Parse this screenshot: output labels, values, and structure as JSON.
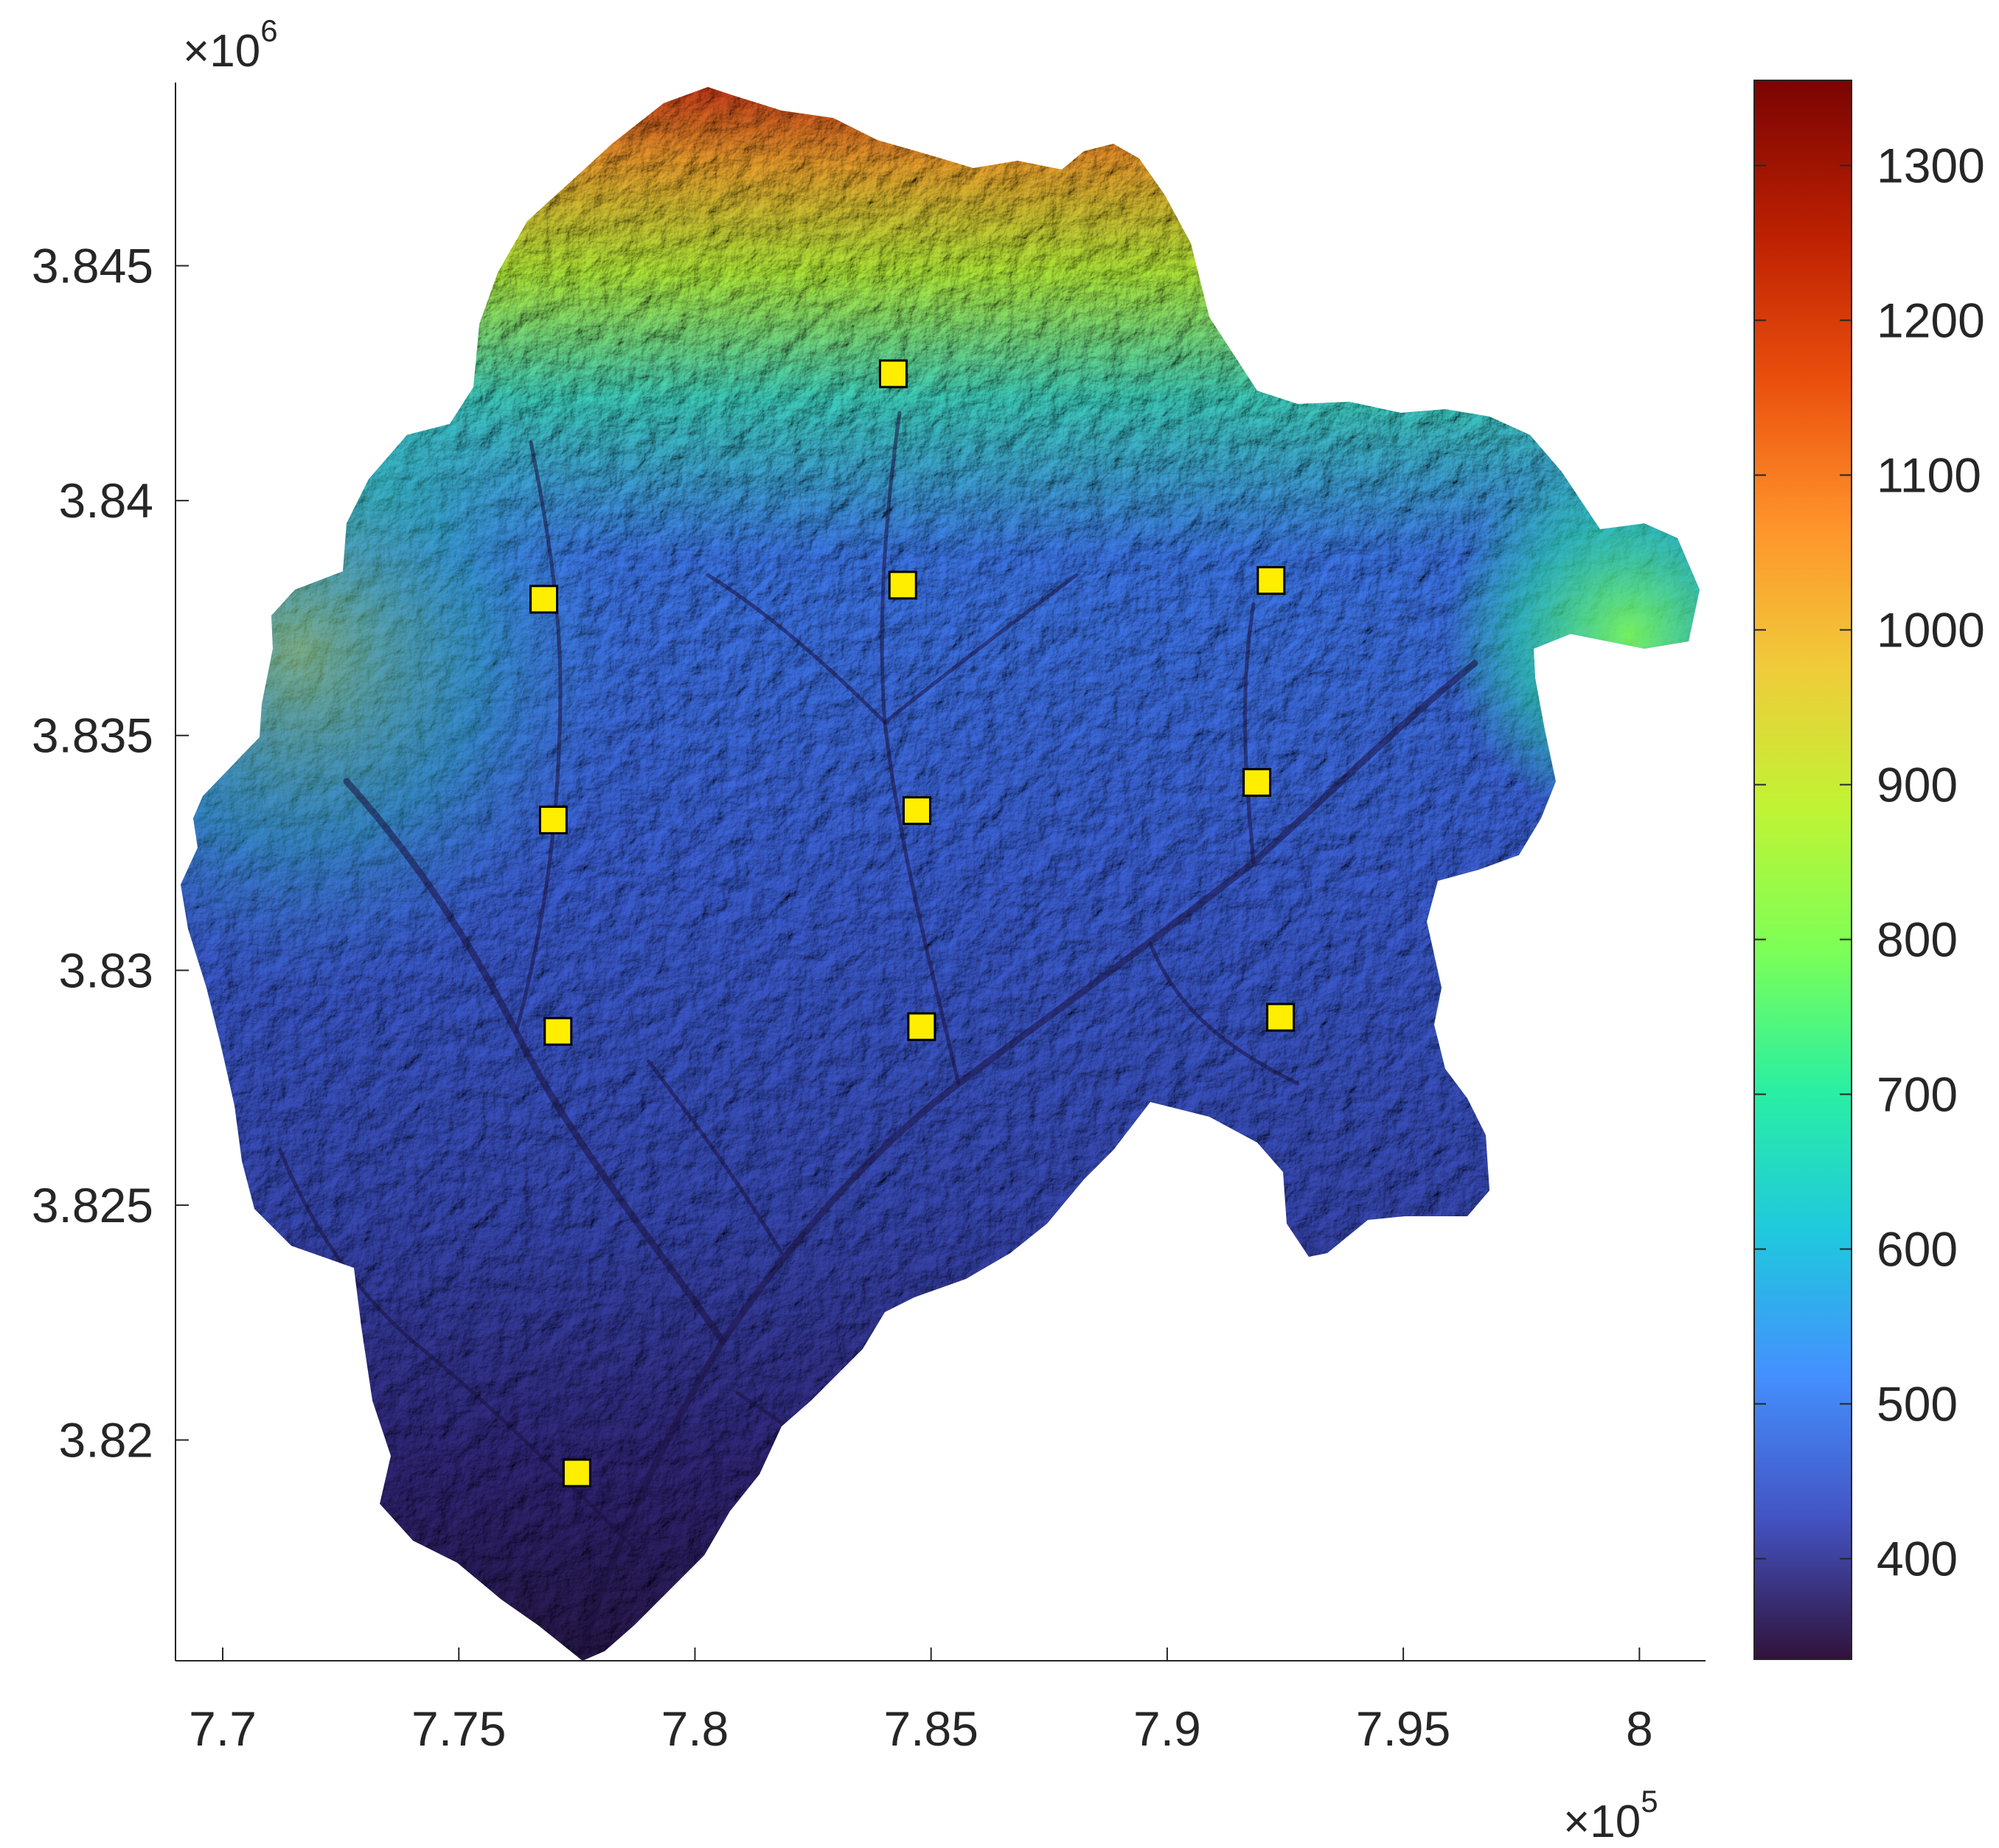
{
  "figure": {
    "x_axis": {
      "ticks": [
        "7.7",
        "7.75",
        "7.8",
        "7.85",
        "7.9",
        "7.95",
        "8"
      ],
      "tick_values": [
        770000,
        775000,
        780000,
        785000,
        790000,
        795000,
        800000
      ],
      "range": [
        769000,
        801400
      ],
      "multiplier_base": "10",
      "multiplier_exponent": "5",
      "multiplier_sign": "×"
    },
    "y_axis": {
      "ticks": [
        "3.82",
        "3.825",
        "3.83",
        "3.835",
        "3.84",
        "3.845"
      ],
      "tick_values": [
        3820000,
        3825000,
        3830000,
        3835000,
        3840000,
        3845000
      ],
      "range": [
        3815300,
        3848900
      ],
      "multiplier_base": "10",
      "multiplier_exponent": "6",
      "multiplier_sign": "×"
    },
    "colorbar": {
      "ticks": [
        "400",
        "500",
        "600",
        "700",
        "800",
        "900",
        "1000",
        "1100",
        "1200",
        "1300"
      ],
      "tick_values": [
        400,
        500,
        600,
        700,
        800,
        900,
        1000,
        1100,
        1200,
        1300
      ],
      "range": [
        335,
        1355
      ],
      "colors": [
        "#30123b",
        "#4454c4",
        "#4490fe",
        "#1fc8de",
        "#29efa2",
        "#7dff56",
        "#c1f334",
        "#f1ca3a",
        "#fe922a",
        "#ea4f0d",
        "#be2102",
        "#7a0403"
      ]
    }
  },
  "chart_data": {
    "type": "scatter",
    "title": "",
    "xlabel": "",
    "ylabel": "",
    "background": "elevation map (DEM) of a river basin, colored by elevation",
    "marker": {
      "shape": "square",
      "fill": "#ffee00",
      "edge": "#000000"
    },
    "series": [
      {
        "x": [
          784200,
          784400,
          792200,
          776800,
          777000,
          784700,
          791900,
          777100,
          784800,
          792400,
          777500
        ],
        "y": [
          3842700,
          3838200,
          3838300,
          3837900,
          3833200,
          3833400,
          3834000,
          3828700,
          3828800,
          3829000,
          3819300
        ]
      }
    ],
    "xlim": [
      769000,
      801400
    ],
    "ylim": [
      3815300,
      3848900
    ],
    "grid": false
  }
}
